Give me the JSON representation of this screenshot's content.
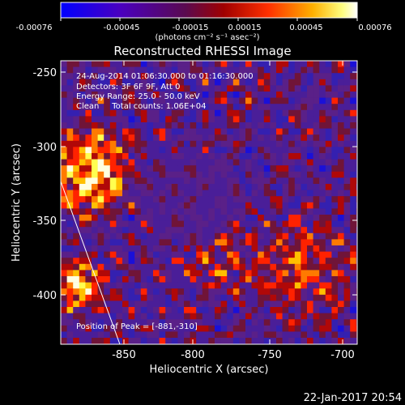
{
  "title": "Reconstructed RHESSI Image",
  "colorbar": {
    "ticks": [
      "-0.00076",
      "-0.00045",
      "-0.00015",
      "0.00015",
      "0.00045",
      "0.00076"
    ],
    "unit_label": "(photons cm⁻² s⁻¹ asec⁻²)",
    "colormap": [
      "#0000ff",
      "#6a00b0",
      "#7a1010",
      "#ff2a00",
      "#ff9a00",
      "#ffff60",
      "#ffffff"
    ]
  },
  "axes": {
    "xlabel": "Heliocentric X (arcsec)",
    "ylabel": "Heliocentric Y (arcsec)",
    "x_ticks": [
      "-850",
      "-800",
      "-750",
      "-700"
    ],
    "y_ticks": [
      "-250",
      "-300",
      "-350",
      "-400"
    ],
    "xlim": [
      -893,
      -692
    ],
    "ylim": [
      -433,
      -242
    ]
  },
  "info": {
    "time_range": "24-Aug-2014 01:06:30.000 to 01:16:30.000",
    "detectors": "Detectors: 3F 6F 9F, Att 0",
    "energy": "Energy Range: 25.0 - 50.0 keV",
    "clean": "Clean     Total counts: 1.06E+04"
  },
  "peak_label": "Position of Peak = [-881,-310]",
  "footer_date": "22-Jan-2017 20:54"
}
